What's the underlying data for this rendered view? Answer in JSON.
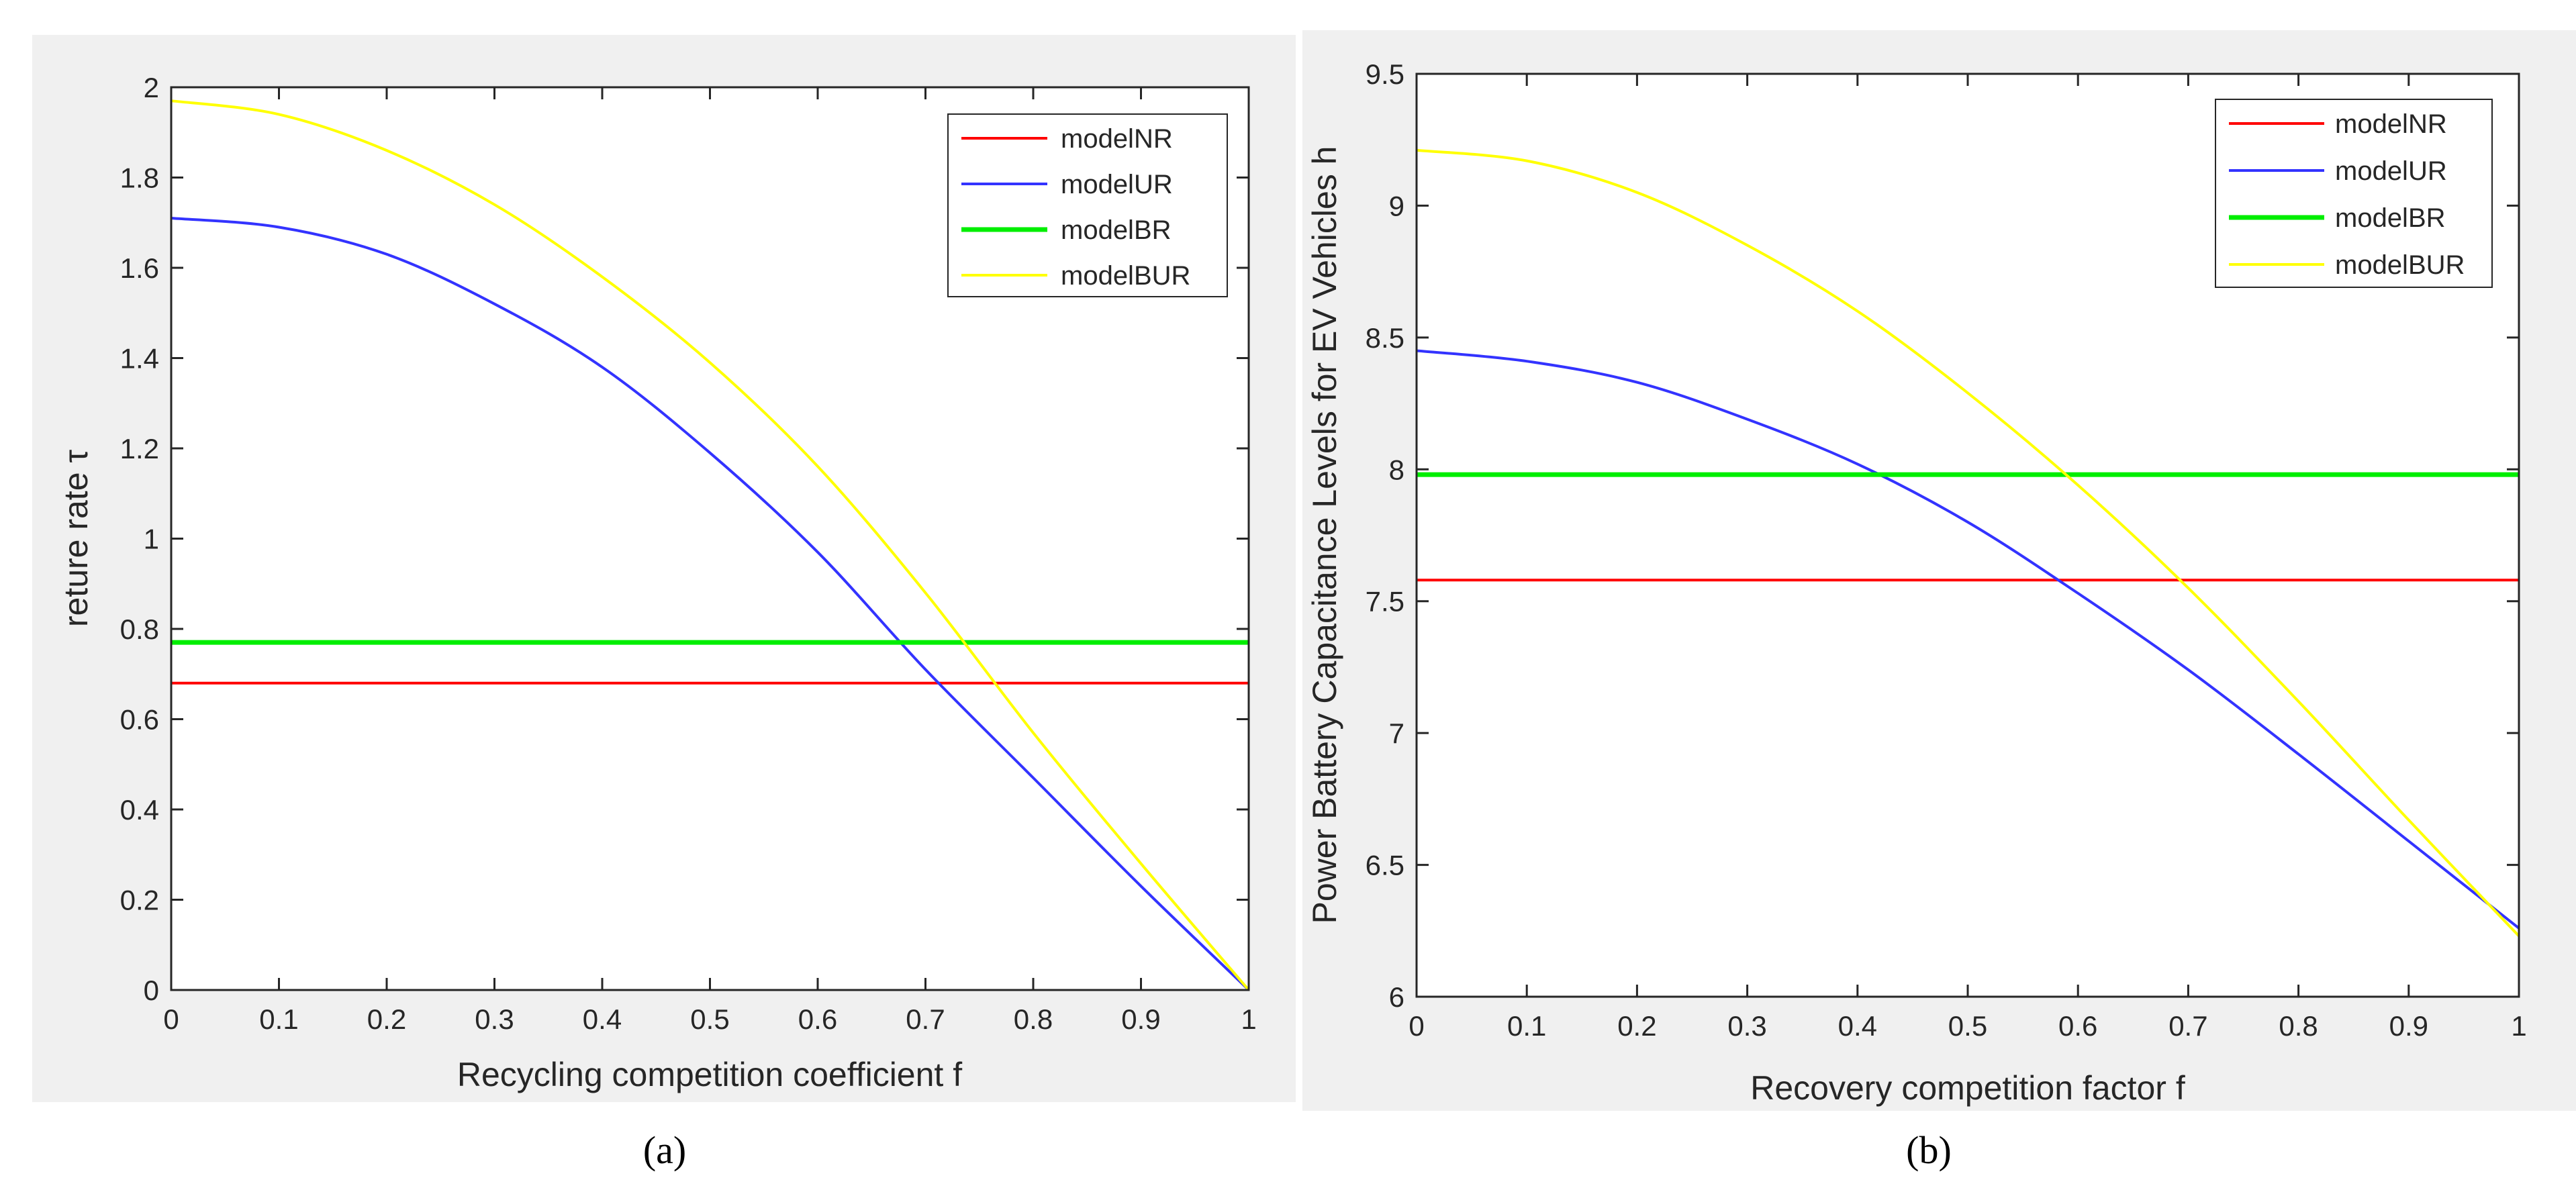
{
  "chart_data": [
    {
      "type": "line",
      "panel_label": "(a)",
      "xlabel": "Recycling competition coefficient f",
      "ylabel": "reture rate τ",
      "xlim": [
        0,
        1
      ],
      "ylim": [
        0,
        2
      ],
      "xticks": [
        0,
        0.1,
        0.2,
        0.3,
        0.4,
        0.5,
        0.6,
        0.7,
        0.8,
        0.9,
        1
      ],
      "yticks": [
        0,
        0.2,
        0.4,
        0.6,
        0.8,
        1,
        1.2,
        1.4,
        1.6,
        1.8,
        2
      ],
      "xtick_labels": [
        "0",
        "0.1",
        "0.2",
        "0.3",
        "0.4",
        "0.5",
        "0.6",
        "0.7",
        "0.8",
        "0.9",
        "1"
      ],
      "ytick_labels": [
        "0",
        "0.2",
        "0.4",
        "0.6",
        "0.8",
        "1",
        "1.2",
        "1.4",
        "1.6",
        "1.8",
        "2"
      ],
      "legend_position": "top-right",
      "x": [
        0,
        0.1,
        0.2,
        0.3,
        0.4,
        0.5,
        0.6,
        0.7,
        0.8,
        0.9,
        1
      ],
      "series": [
        {
          "name": "modelNR",
          "color": "#ff0000",
          "values": [
            0.68,
            0.68,
            0.68,
            0.68,
            0.68,
            0.68,
            0.68,
            0.68,
            0.68,
            0.68,
            0.68
          ]
        },
        {
          "name": "modelUR",
          "color": "#3333ff",
          "values": [
            1.71,
            1.69,
            1.63,
            1.52,
            1.38,
            1.19,
            0.97,
            0.71,
            0.47,
            0.23,
            0.0
          ]
        },
        {
          "name": "modelBR",
          "color": "#00ee00",
          "values": [
            0.77,
            0.77,
            0.77,
            0.77,
            0.77,
            0.77,
            0.77,
            0.77,
            0.77,
            0.77,
            0.77
          ]
        },
        {
          "name": "modelBUR",
          "color": "#ffff00",
          "values": [
            1.97,
            1.94,
            1.86,
            1.74,
            1.58,
            1.39,
            1.16,
            0.88,
            0.57,
            0.28,
            0.0
          ]
        }
      ]
    },
    {
      "type": "line",
      "panel_label": "(b)",
      "xlabel": "Recovery competition factor f",
      "ylabel": "Power Battery Capacitance Levels for EV Vehicles h",
      "xlim": [
        0,
        1
      ],
      "ylim": [
        6,
        9.5
      ],
      "xticks": [
        0,
        0.1,
        0.2,
        0.3,
        0.4,
        0.5,
        0.6,
        0.7,
        0.8,
        0.9,
        1
      ],
      "yticks": [
        6,
        6.5,
        7,
        7.5,
        8,
        8.5,
        9,
        9.5
      ],
      "xtick_labels": [
        "0",
        "0.1",
        "0.2",
        "0.3",
        "0.4",
        "0.5",
        "0.6",
        "0.7",
        "0.8",
        "0.9",
        "1"
      ],
      "ytick_labels": [
        "6",
        "6.5",
        "7",
        "7.5",
        "8",
        "8.5",
        "9",
        "9.5"
      ],
      "legend_position": "top-right",
      "x": [
        0,
        0.1,
        0.2,
        0.3,
        0.4,
        0.5,
        0.6,
        0.7,
        0.8,
        0.9,
        1
      ],
      "series": [
        {
          "name": "modelNR",
          "color": "#ff0000",
          "values": [
            7.58,
            7.58,
            7.58,
            7.58,
            7.58,
            7.58,
            7.58,
            7.58,
            7.58,
            7.58,
            7.58
          ]
        },
        {
          "name": "modelUR",
          "color": "#3333ff",
          "values": [
            8.45,
            8.41,
            8.33,
            8.19,
            8.02,
            7.8,
            7.53,
            7.24,
            6.92,
            6.59,
            6.26
          ]
        },
        {
          "name": "modelBR",
          "color": "#00ee00",
          "values": [
            7.98,
            7.98,
            7.98,
            7.98,
            7.98,
            7.98,
            7.98,
            7.98,
            7.98,
            7.98,
            7.98
          ]
        },
        {
          "name": "modelBUR",
          "color": "#ffff00",
          "values": [
            9.21,
            9.17,
            9.05,
            8.85,
            8.6,
            8.29,
            7.94,
            7.55,
            7.12,
            6.67,
            6.23
          ]
        }
      ]
    }
  ]
}
